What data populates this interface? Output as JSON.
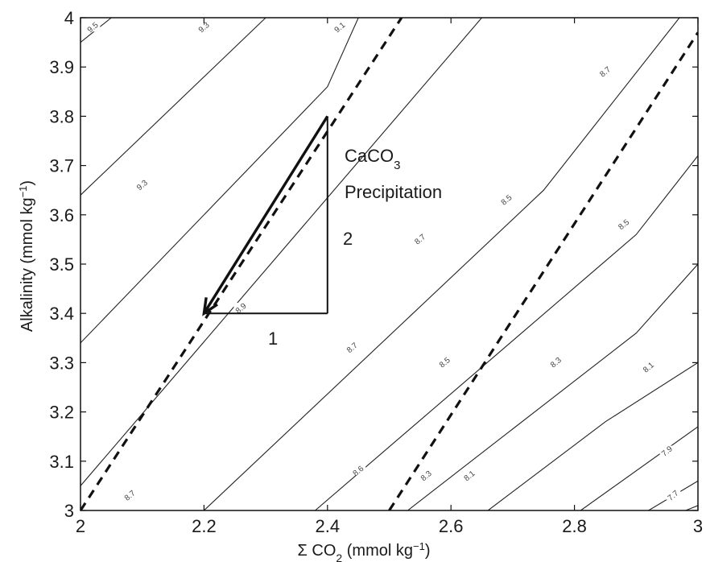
{
  "chart_data": {
    "type": "line",
    "title": "",
    "xlabel": "Σ CO",
    "xlabel_sub": "2",
    "xlabel_units": " (mmol kg",
    "xlabel_sup": "−1",
    "xlabel_close": ")",
    "ylabel": "Alkalinity (mmol kg",
    "ylabel_sup": "−1",
    "ylabel_close": ")",
    "xlim": [
      2,
      3
    ],
    "ylim": [
      3,
      4
    ],
    "x_ticks": [
      2,
      2.2,
      2.4,
      2.6,
      2.8,
      3
    ],
    "x_tick_labels": [
      "2",
      "2.2",
      "2.4",
      "2.6",
      "2.8",
      "3"
    ],
    "y_ticks": [
      3,
      3.1,
      3.2,
      3.3,
      3.4,
      3.5,
      3.6,
      3.7,
      3.8,
      3.9,
      4
    ],
    "y_tick_labels": [
      "3",
      "3.1",
      "3.2",
      "3.3",
      "3.4",
      "3.5",
      "3.6",
      "3.7",
      "3.8",
      "3.9",
      "4"
    ],
    "grid": false,
    "contours": [
      {
        "label": "9.5",
        "points": [
          [
            2,
            3.95
          ],
          [
            2.05,
            4
          ]
        ],
        "label_at": [
          2.02,
          3.98
        ]
      },
      {
        "label": "9.3",
        "points": [
          [
            2,
            3.64
          ],
          [
            2.3,
            4
          ]
        ],
        "label_at": [
          2.2,
          3.98
        ]
      },
      {
        "label": "9.1",
        "points": [
          [
            2,
            3.34
          ],
          [
            2.4,
            3.86
          ],
          [
            2.45,
            4
          ]
        ],
        "label_at": [
          2.42,
          3.98
        ]
      },
      {
        "label": "8.9",
        "points": [
          [
            2,
            3.05
          ],
          [
            2.65,
            4
          ]
        ],
        "label_at": [
          2.26,
          3.41
        ]
      },
      {
        "label": "8.7",
        "points": [
          [
            2.2,
            3
          ],
          [
            2.75,
            3.65
          ],
          [
            2.97,
            4
          ]
        ],
        "label_at": [
          2.55,
          3.55
        ]
      },
      {
        "label": "8.6",
        "points": [
          [
            2.38,
            3
          ],
          [
            2.9,
            3.56
          ],
          [
            3,
            3.72
          ]
        ],
        "label_at": [
          2.45,
          3.08
        ]
      },
      {
        "label": "8.5",
        "points": [
          [
            2.53,
            3
          ],
          [
            2.9,
            3.36
          ],
          [
            3,
            3.5
          ]
        ],
        "label_at": [
          2.59,
          3.3
        ]
      },
      {
        "label": "8.3",
        "points": [
          [
            2.66,
            3
          ],
          [
            2.85,
            3.18
          ],
          [
            3,
            3.3
          ]
        ],
        "label_at": [
          2.77,
          3.3
        ]
      },
      {
        "label": "8.1",
        "points": [
          [
            2.81,
            3
          ],
          [
            3,
            3.17
          ]
        ],
        "label_at": [
          2.92,
          3.29
        ]
      },
      {
        "label": "7.9",
        "points": [
          [
            2.92,
            3
          ],
          [
            3,
            3.06
          ]
        ],
        "label_at": [
          2.95,
          3.12
        ]
      },
      {
        "label": "7.7",
        "points": [
          [
            2.98,
            3
          ],
          [
            3,
            3.01
          ]
        ],
        "label_at": [
          2.96,
          3.03
        ]
      }
    ],
    "contour_label_extra": [
      {
        "label": "9.3",
        "at": [
          2.1,
          3.66
        ]
      },
      {
        "label": "8.7",
        "at": [
          2.44,
          3.33
        ]
      },
      {
        "label": "8.7",
        "at": [
          2.08,
          3.03
        ]
      },
      {
        "label": "8.5",
        "at": [
          2.69,
          3.63
        ]
      },
      {
        "label": "8.5",
        "at": [
          2.88,
          3.58
        ]
      },
      {
        "label": "8.3",
        "at": [
          2.56,
          3.07
        ]
      },
      {
        "label": "8.1",
        "at": [
          2.63,
          3.07
        ]
      },
      {
        "label": "8.7",
        "at": [
          2.85,
          3.89
        ]
      }
    ],
    "dashed_lines": [
      {
        "points": [
          [
            2,
            3
          ],
          [
            2.52,
            4
          ]
        ]
      },
      {
        "points": [
          [
            2.5,
            3
          ],
          [
            3,
            3.97
          ]
        ]
      }
    ],
    "arrow": {
      "from": [
        2.4,
        3.8
      ],
      "to": [
        2.2,
        3.4
      ]
    },
    "triangle": [
      [
        2.2,
        3.4
      ],
      [
        2.4,
        3.4
      ],
      [
        2.4,
        3.8
      ]
    ],
    "annotations": {
      "caco3_main": "CaCO",
      "caco3_sub": "3",
      "precipitation": "Precipitation",
      "vertical_leg": "2",
      "horizontal_leg": "1"
    }
  }
}
